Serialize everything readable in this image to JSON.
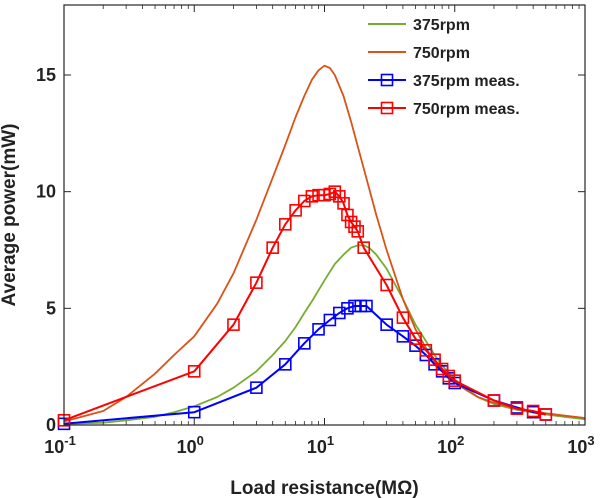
{
  "chart_data": {
    "type": "line",
    "xlabel": "Load resistance(MΩ)",
    "ylabel": "Average power(mW)",
    "xscale": "log",
    "xlim": [
      0.1,
      1000
    ],
    "ylim": [
      0,
      18
    ],
    "x_ticks": [
      {
        "value": 0.1,
        "base": "10",
        "exp": "-1"
      },
      {
        "value": 1,
        "base": "10",
        "exp": "0"
      },
      {
        "value": 10,
        "base": "10",
        "exp": "1"
      },
      {
        "value": 100,
        "base": "10",
        "exp": "2"
      },
      {
        "value": 1000,
        "base": "10",
        "exp": "3"
      }
    ],
    "y_ticks": [
      {
        "value": 0,
        "label": "0"
      },
      {
        "value": 5,
        "label": "5"
      },
      {
        "value": 10,
        "label": "10"
      },
      {
        "value": 15,
        "label": "15"
      }
    ],
    "grid": false,
    "legend_position": "top-right",
    "series": [
      {
        "name": "375rpm",
        "color": "#77ac30",
        "style": "line",
        "x": [
          0.1,
          0.2,
          0.3,
          0.5,
          0.7,
          1,
          1.5,
          2,
          3,
          4,
          5,
          6,
          7,
          8,
          10,
          12,
          14,
          16,
          18,
          20,
          22,
          25,
          30,
          35,
          40,
          50,
          60,
          70,
          80,
          100,
          150,
          200,
          300,
          500,
          700,
          1000
        ],
        "y": [
          0.05,
          0.1,
          0.2,
          0.35,
          0.55,
          0.8,
          1.2,
          1.6,
          2.3,
          3.0,
          3.6,
          4.2,
          4.8,
          5.3,
          6.2,
          6.9,
          7.3,
          7.6,
          7.7,
          7.7,
          7.6,
          7.3,
          6.7,
          6.0,
          5.4,
          4.3,
          3.6,
          3.0,
          2.55,
          1.95,
          1.2,
          0.9,
          0.65,
          0.45,
          0.35,
          0.25
        ]
      },
      {
        "name": "750rpm",
        "color": "#d95319",
        "style": "line",
        "x": [
          0.1,
          0.2,
          0.3,
          0.5,
          0.7,
          1,
          1.5,
          2,
          3,
          4,
          5,
          6,
          7,
          8,
          9,
          10,
          11,
          12,
          14,
          16,
          20,
          25,
          30,
          40,
          50,
          60,
          70,
          80,
          100,
          150,
          200,
          300,
          500,
          700,
          1000
        ],
        "y": [
          0.15,
          0.6,
          1.2,
          2.2,
          3.0,
          3.8,
          5.2,
          6.5,
          8.8,
          10.6,
          12.0,
          13.2,
          14.1,
          14.8,
          15.2,
          15.4,
          15.3,
          15.0,
          14.1,
          13.0,
          11.0,
          9.0,
          7.5,
          5.4,
          4.1,
          3.3,
          2.7,
          2.3,
          1.8,
          1.2,
          0.95,
          0.7,
          0.5,
          0.4,
          0.3
        ]
      },
      {
        "name": "375rpm meas.",
        "color": "#0000ff",
        "style": "line-marker",
        "x": [
          0.1,
          1,
          3,
          5,
          7,
          9,
          11,
          13,
          15,
          17,
          19,
          21,
          30,
          40,
          50,
          60,
          70,
          80,
          90,
          100,
          200,
          300,
          400,
          500
        ],
        "y": [
          0.05,
          0.55,
          1.6,
          2.6,
          3.5,
          4.1,
          4.5,
          4.8,
          5.0,
          5.1,
          5.1,
          5.1,
          4.3,
          3.8,
          3.4,
          3.0,
          2.6,
          2.3,
          2.0,
          1.8,
          1.05,
          0.75,
          0.55,
          0.45
        ]
      },
      {
        "name": "750rpm meas.",
        "color": "#ff0000",
        "style": "line-marker",
        "x": [
          0.1,
          1,
          2,
          3,
          4,
          5,
          6,
          7,
          8,
          9,
          10,
          11,
          12,
          13,
          14,
          15,
          16,
          17,
          18,
          20,
          30,
          40,
          50,
          60,
          70,
          80,
          90,
          100,
          200,
          300,
          400,
          500
        ],
        "y": [
          0.2,
          2.3,
          4.3,
          6.1,
          7.6,
          8.6,
          9.2,
          9.6,
          9.8,
          9.85,
          9.85,
          9.9,
          10.0,
          9.8,
          9.5,
          9.0,
          8.7,
          8.5,
          8.3,
          7.6,
          6.0,
          4.6,
          3.7,
          3.2,
          2.8,
          2.4,
          2.1,
          1.9,
          1.05,
          0.7,
          0.6,
          0.45
        ]
      }
    ]
  }
}
